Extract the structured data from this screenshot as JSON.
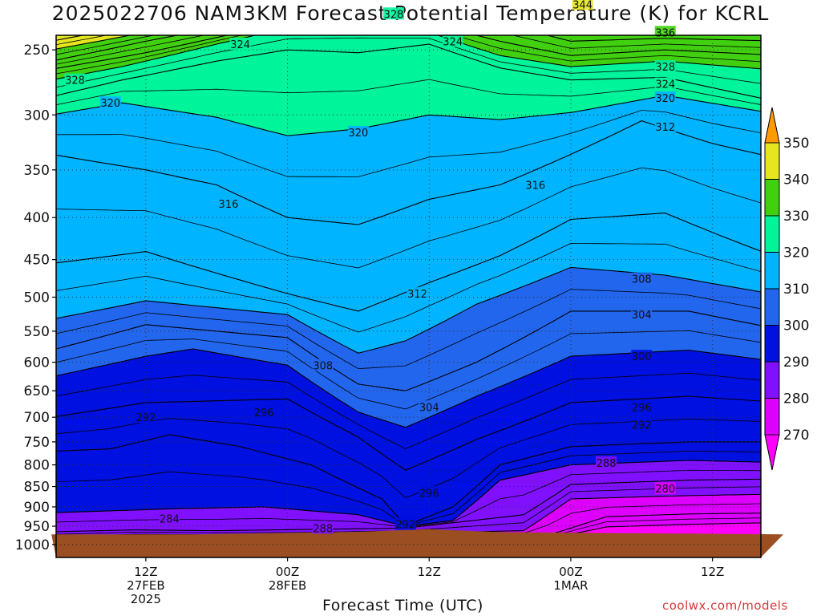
{
  "title": "2025022706 NAM3KM Forecast Potential Temperature (K) for KCRL",
  "xaxis_title": "Forecast Time (UTC)",
  "credit": "coolwx.com/models",
  "colors": {
    "ground": "#9b4e22",
    "bands": {
      "260": "#ff00ff",
      "270": "#ff00ff",
      "280": "#dd00ff",
      "290": "#8010ff",
      "300": "#0010e0",
      "310": "#2266ee",
      "320": "#00b4ff",
      "330": "#00f59a",
      "340": "#40d010",
      "350": "#e6e620",
      "360": "#ff9b00"
    }
  },
  "chart_data": {
    "type": "contour",
    "title": "2025022706 NAM3KM Forecast Potential Temperature (K) for KCRL",
    "xlabel": "Forecast Time (UTC)",
    "ylabel": "",
    "y_scale": "log-pressure (inverted)",
    "y_ticks": [
      250,
      300,
      350,
      400,
      450,
      500,
      550,
      600,
      650,
      700,
      750,
      800,
      850,
      900,
      950,
      1000
    ],
    "x_ticks": [
      {
        "time": "2025-02-27T12Z",
        "line1": "12Z",
        "line2": "27FEB",
        "line3": "2025"
      },
      {
        "time": "2025-02-28T00Z",
        "line1": "00Z",
        "line2": "28FEB",
        "line3": ""
      },
      {
        "time": "2025-02-28T12Z",
        "line1": "12Z",
        "line2": "",
        "line3": ""
      },
      {
        "time": "2025-03-01T00Z",
        "line1": "00Z",
        "line2": "1MAR",
        "line3": ""
      },
      {
        "time": "2025-03-01T12Z",
        "line1": "12Z",
        "line2": "",
        "line3": ""
      }
    ],
    "grid": "dotted at ticks",
    "colorbar": {
      "levels": [
        270,
        280,
        290,
        300,
        310,
        320,
        330,
        340,
        350
      ],
      "labels": [
        "270",
        "280",
        "290",
        "300",
        "310",
        "320",
        "330",
        "340",
        "350"
      ],
      "extend": "both",
      "placement": "right"
    },
    "isentropes": [
      {
        "theta": 284,
        "label": "284",
        "x": "2025-02-27T14Z",
        "p": 930
      },
      {
        "theta": 288,
        "label": "288",
        "x": "2025-02-28T03Z",
        "p": 955
      },
      {
        "theta": 292,
        "label": "292",
        "x": "2025-02-28T10Z",
        "p": 945
      },
      {
        "theta": 292,
        "label": "292",
        "x": "2025-02-27T12Z",
        "p": 700
      },
      {
        "theta": 296,
        "label": "296",
        "x": "2025-02-27T22Z",
        "p": 690
      },
      {
        "theta": 296,
        "label": "296",
        "x": "2025-02-28T12Z",
        "p": 865
      },
      {
        "theta": 296,
        "label": "296",
        "x": "2025-03-01T06Z",
        "p": 680
      },
      {
        "theta": 280,
        "label": "280",
        "x": "2025-03-01T08Z",
        "p": 855
      },
      {
        "theta": 288,
        "label": "288",
        "x": "2025-03-01T03Z",
        "p": 795
      },
      {
        "theta": 292,
        "label": "292",
        "x": "2025-03-01T06Z",
        "p": 715
      },
      {
        "theta": 300,
        "label": "300",
        "x": "2025-03-01T06Z",
        "p": 590
      },
      {
        "theta": 304,
        "label": "304",
        "x": "2025-02-28T12Z",
        "p": 680
      },
      {
        "theta": 304,
        "label": "304",
        "x": "2025-03-01T06Z",
        "p": 525
      },
      {
        "theta": 308,
        "label": "308",
        "x": "2025-02-28T03Z",
        "p": 605
      },
      {
        "theta": 308,
        "label": "308",
        "x": "2025-03-01T06Z",
        "p": 475
      },
      {
        "theta": 312,
        "label": "312",
        "x": "2025-02-28T11Z",
        "p": 495
      },
      {
        "theta": 312,
        "label": "312",
        "x": "2025-03-01T08Z",
        "p": 310
      },
      {
        "theta": 316,
        "label": "316",
        "x": "2025-02-27T19Z",
        "p": 385
      },
      {
        "theta": 316,
        "label": "316",
        "x": "2025-02-28T21Z",
        "p": 365
      },
      {
        "theta": 320,
        "label": "320",
        "x": "2025-02-27T09Z",
        "p": 290
      },
      {
        "theta": 320,
        "label": "320",
        "x": "2025-02-28T06Z",
        "p": 315
      },
      {
        "theta": 320,
        "label": "320",
        "x": "2025-03-01T08Z",
        "p": 286
      },
      {
        "theta": 324,
        "label": "324",
        "x": "2025-02-27T20Z",
        "p": 246
      },
      {
        "theta": 324,
        "label": "324",
        "x": "2025-02-28T14Z",
        "p": 244
      },
      {
        "theta": 324,
        "label": "324",
        "x": "2025-03-01T08Z",
        "p": 275
      },
      {
        "theta": 328,
        "label": "328",
        "x": "2025-02-27T06Z",
        "p": 272
      },
      {
        "theta": 328,
        "label": "328",
        "x": "2025-02-28T09Z",
        "p": 226
      },
      {
        "theta": 328,
        "label": "328",
        "x": "2025-03-01T08Z",
        "p": 262
      },
      {
        "theta": 336,
        "label": "336",
        "x": "2025-03-01T08Z",
        "p": 238
      },
      {
        "theta": 344,
        "label": "344",
        "x": "2025-03-01T01Z",
        "p": 220
      }
    ]
  }
}
